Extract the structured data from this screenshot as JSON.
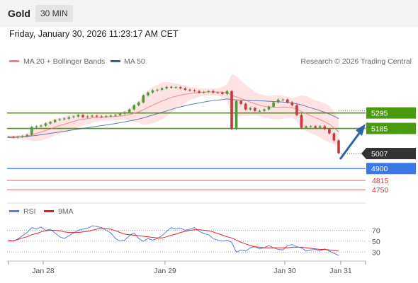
{
  "header": {
    "title": "Gold",
    "timeframe": "30 MIN"
  },
  "datetime": "Friday, January 30, 2026 11:23:17 AM CET",
  "credit": "Research © 2026 Trading Central",
  "colors": {
    "bollinger": "#f08080",
    "bollinger_fill": "#fde3e3",
    "ma50": "#3a5fa0",
    "green_level": "#4a9a10",
    "blue_level": "#3b78e7",
    "red_level": "#e03030",
    "candle_up": "#4d9a3a",
    "candle_down": "#c43a3a",
    "current_price_box": "#333333",
    "arrow": "#2f62a8",
    "rsi": "#5b7fdb",
    "rsi_ma": "#e02020"
  },
  "chart_data": [
    {
      "type": "line",
      "title": "",
      "xlabel": "",
      "ylabel": "",
      "ylim": [
        4690,
        5620
      ],
      "x_ticks": [
        "Jan 28",
        "Jan 29",
        "Jan 30",
        "Jan 31"
      ],
      "legend": [
        {
          "label": "MA 20 + Bollinger Bands",
          "color": "#f08080"
        },
        {
          "label": "MA 50",
          "color": "#3a5fa0"
        }
      ],
      "current_price": {
        "value": 5007,
        "label": "5007"
      },
      "levels": [
        {
          "value": 5295,
          "label": "5295",
          "style": "green-box"
        },
        {
          "value": 5185,
          "label": "5185",
          "style": "green-box"
        },
        {
          "value": 4900,
          "label": "4900",
          "style": "blue-box"
        },
        {
          "value": 4815,
          "label": "4815",
          "style": "red-text"
        },
        {
          "value": 4750,
          "label": "4750",
          "style": "red-text"
        }
      ],
      "series": [
        {
          "name": "Price",
          "values": [
            5125,
            5122,
            5125,
            5130,
            5140,
            5195,
            5200,
            5205,
            5220,
            5230,
            5245,
            5250,
            5255,
            5265,
            5270,
            5280,
            5265,
            5270,
            5275,
            5270,
            5268,
            5272,
            5275,
            5280,
            5290,
            5300,
            5320,
            5350,
            5370,
            5420,
            5440,
            5455,
            5460,
            5470,
            5480,
            5475,
            5478,
            5470,
            5460,
            5455,
            5450,
            5440,
            5445,
            5450,
            5440,
            5440,
            5430,
            5450,
            5180,
            5380,
            5360,
            5320,
            5330,
            5310,
            5310,
            5320,
            5340,
            5370,
            5390,
            5390,
            5370,
            5350,
            5280,
            5190,
            5200,
            5200,
            5190,
            5200,
            5180,
            5150,
            5100,
            5010
          ]
        },
        {
          "name": "MA 20",
          "values": [
            5125,
            5125,
            5126,
            5127,
            5130,
            5140,
            5150,
            5160,
            5170,
            5180,
            5195,
            5205,
            5215,
            5225,
            5235,
            5245,
            5250,
            5255,
            5260,
            5262,
            5264,
            5266,
            5268,
            5270,
            5273,
            5277,
            5283,
            5292,
            5303,
            5318,
            5335,
            5350,
            5365,
            5380,
            5392,
            5405,
            5414,
            5422,
            5428,
            5433,
            5437,
            5440,
            5442,
            5444,
            5444,
            5443,
            5442,
            5440,
            5420,
            5410,
            5398,
            5385,
            5372,
            5360,
            5350,
            5342,
            5338,
            5336,
            5336,
            5337,
            5336,
            5332,
            5322,
            5305,
            5290,
            5275,
            5262,
            5248,
            5232,
            5215,
            5190,
            5160
          ]
        },
        {
          "name": "BB Upper",
          "values": [
            5135,
            5135,
            5137,
            5140,
            5150,
            5180,
            5200,
            5215,
            5228,
            5240,
            5255,
            5262,
            5270,
            5280,
            5288,
            5295,
            5295,
            5295,
            5295,
            5293,
            5292,
            5292,
            5294,
            5297,
            5302,
            5310,
            5325,
            5350,
            5375,
            5425,
            5455,
            5480,
            5495,
            5510,
            5515,
            5510,
            5505,
            5498,
            5490,
            5480,
            5475,
            5470,
            5468,
            5470,
            5470,
            5470,
            5480,
            5500,
            5570,
            5555,
            5525,
            5495,
            5470,
            5445,
            5430,
            5420,
            5418,
            5420,
            5422,
            5420,
            5410,
            5400,
            5410,
            5420,
            5415,
            5400,
            5385,
            5375,
            5365,
            5345,
            5310,
            5260
          ]
        },
        {
          "name": "BB Lower",
          "values": [
            5115,
            5113,
            5112,
            5110,
            5105,
            5095,
            5095,
            5100,
            5110,
            5120,
            5135,
            5145,
            5155,
            5165,
            5180,
            5195,
            5205,
            5215,
            5225,
            5232,
            5238,
            5240,
            5242,
            5243,
            5244,
            5244,
            5240,
            5232,
            5225,
            5210,
            5215,
            5220,
            5235,
            5250,
            5270,
            5300,
            5325,
            5345,
            5365,
            5385,
            5398,
            5410,
            5415,
            5418,
            5418,
            5416,
            5405,
            5380,
            5270,
            5265,
            5270,
            5275,
            5275,
            5275,
            5270,
            5265,
            5258,
            5252,
            5250,
            5254,
            5262,
            5264,
            5234,
            5190,
            5165,
            5150,
            5140,
            5120,
            5100,
            5085,
            5070,
            5060
          ]
        },
        {
          "name": "MA 50",
          "values": [
            5120,
            5121,
            5123,
            5125,
            5128,
            5132,
            5136,
            5140,
            5145,
            5150,
            5155,
            5160,
            5165,
            5170,
            5175,
            5180,
            5185,
            5190,
            5195,
            5200,
            5205,
            5210,
            5215,
            5220,
            5226,
            5232,
            5238,
            5245,
            5252,
            5260,
            5270,
            5280,
            5290,
            5300,
            5310,
            5320,
            5330,
            5338,
            5346,
            5354,
            5360,
            5366,
            5372,
            5378,
            5382,
            5386,
            5390,
            5395,
            5390,
            5388,
            5386,
            5384,
            5383,
            5382,
            5381,
            5380,
            5378,
            5376,
            5374,
            5372,
            5370,
            5366,
            5360,
            5352,
            5342,
            5332,
            5322,
            5312,
            5300,
            5287,
            5272,
            5255
          ]
        }
      ]
    },
    {
      "type": "line",
      "title": "",
      "xlabel": "",
      "ylabel": "",
      "ylim": [
        15,
        90
      ],
      "y_ticks": [
        70,
        50,
        30
      ],
      "legend": [
        {
          "label": "RSI",
          "color": "#5b7fdb"
        },
        {
          "label": "9MA",
          "color": "#e02020"
        }
      ],
      "series": [
        {
          "name": "RSI",
          "values": [
            52,
            50,
            54,
            60,
            66,
            75,
            72,
            76,
            70,
            72,
            65,
            58,
            55,
            60,
            65,
            70,
            72,
            74,
            78,
            77,
            75,
            70,
            65,
            55,
            50,
            52,
            60,
            65,
            55,
            50,
            55,
            52,
            55,
            60,
            68,
            75,
            72,
            74,
            70,
            72,
            75,
            68,
            64,
            62,
            55,
            52,
            50,
            52,
            48,
            30,
            34,
            32,
            38,
            40,
            36,
            38,
            42,
            38,
            35,
            34,
            42,
            44,
            40,
            38,
            32,
            34,
            35,
            32,
            36,
            32,
            28,
            24
          ]
        },
        {
          "name": "9MA",
          "values": [
            50,
            51,
            53,
            56,
            58,
            62,
            64,
            67,
            69,
            70,
            70,
            69,
            67,
            66,
            66,
            66,
            67,
            68,
            70,
            72,
            73,
            73,
            72,
            69,
            66,
            63,
            62,
            61,
            60,
            59,
            58,
            57,
            56,
            56,
            58,
            61,
            63,
            66,
            68,
            70,
            71,
            71,
            70,
            69,
            67,
            64,
            61,
            58,
            56,
            52,
            48,
            45,
            42,
            40,
            39,
            38,
            38,
            38,
            38,
            38,
            38,
            39,
            39,
            39,
            38,
            37,
            36,
            35,
            35,
            34,
            33,
            32
          ]
        }
      ]
    }
  ]
}
